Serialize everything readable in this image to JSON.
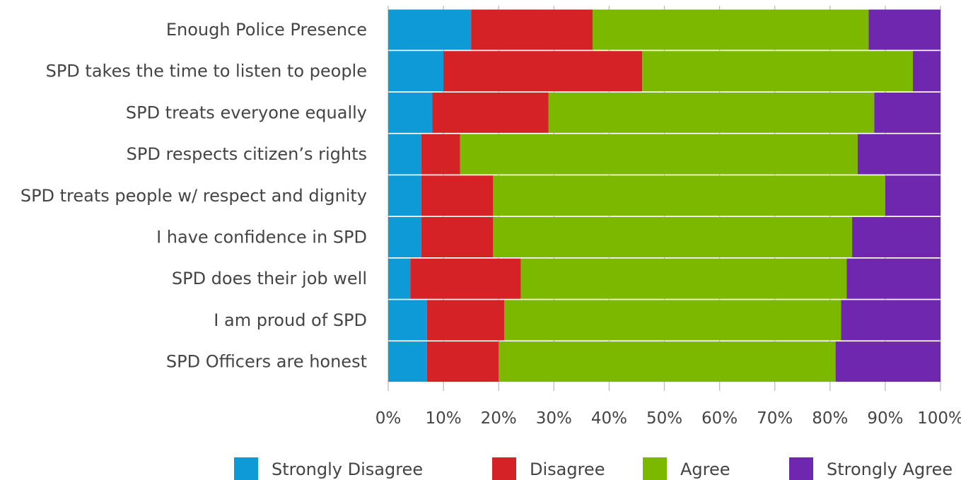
{
  "chart_data": {
    "type": "bar",
    "orientation": "horizontal",
    "stacked": "percent",
    "title": "",
    "xlabel": "",
    "ylabel": "",
    "xlim": [
      0,
      100
    ],
    "grid": "vertical",
    "legend_position": "bottom",
    "categories": [
      "Enough Police Presence",
      "SPD takes the time to listen to people",
      "SPD treats everyone equally",
      "SPD respects citizen’s rights",
      "SPD treats people w/ respect and dignity",
      "I have confidence in SPD",
      "SPD does their job well",
      "I am proud of SPD",
      "SPD Officers are honest"
    ],
    "x_tick_labels": [
      "0%",
      "10%",
      "20%",
      "30%",
      "40%",
      "50%",
      "60%",
      "70%",
      "80%",
      "90%",
      "100%"
    ],
    "series": [
      {
        "name": "Strongly Disagree",
        "color": "#0e9ad6",
        "values": [
          15,
          10,
          8,
          6,
          6,
          6,
          4,
          7,
          7
        ]
      },
      {
        "name": "Disagree",
        "color": "#d42226",
        "values": [
          22,
          36,
          21,
          7,
          13,
          13,
          20,
          14,
          13
        ]
      },
      {
        "name": "Agree",
        "color": "#7db800",
        "values": [
          50,
          49,
          59,
          72,
          71,
          65,
          59,
          61,
          61
        ]
      },
      {
        "name": "Strongly Agree",
        "color": "#7027b0",
        "values": [
          13,
          5,
          12,
          15,
          10,
          16,
          17,
          18,
          19
        ]
      }
    ]
  }
}
